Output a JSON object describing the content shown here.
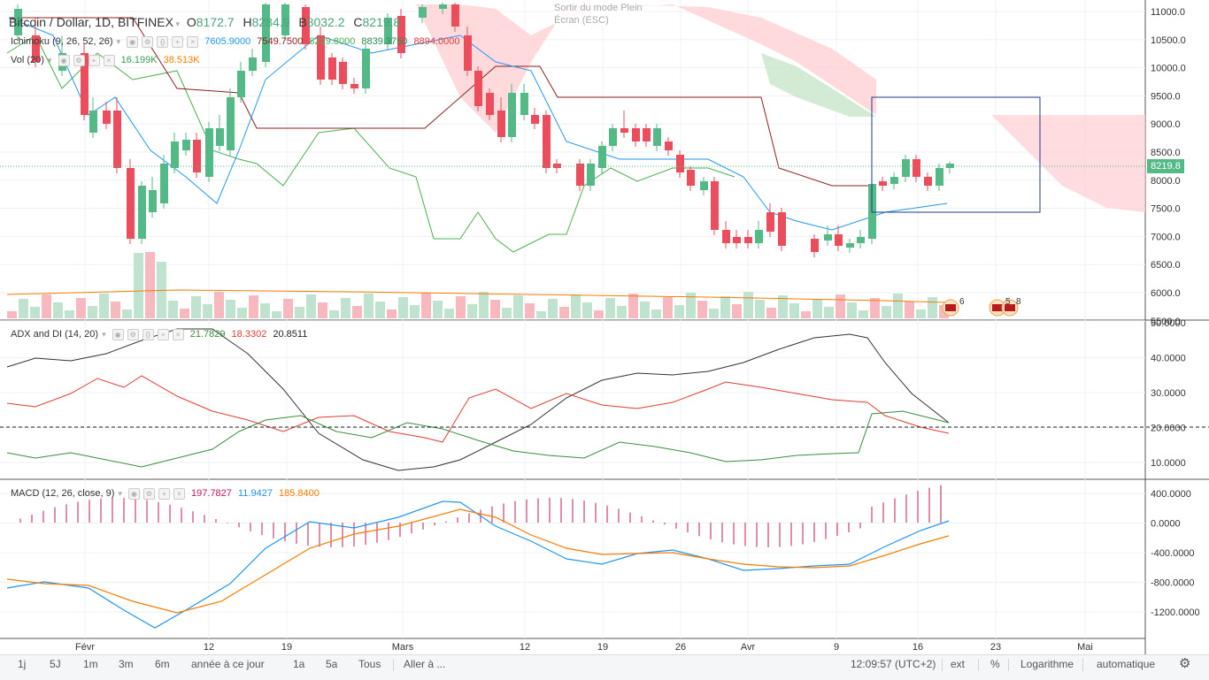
{
  "header": {
    "symbol": "Bitcoin / Dollar, 1D, BITFINEX",
    "open_label": "O",
    "open": "8172.7",
    "high_label": "H",
    "high": "8284.9",
    "low_label": "B",
    "low": "8032.2",
    "close_label": "C",
    "close": "8219.8"
  },
  "overlay_tooltip": {
    "line1": "Sortir du mode Plein",
    "line2": "Écran (ESC)"
  },
  "indicators": {
    "ichimoku": {
      "name": "Ichimoku (9, 26, 52, 26)",
      "values": [
        "7605.9000",
        "7549.7500",
        "8219.8000",
        "8839.3750",
        "8894.0000"
      ],
      "colors": [
        "#2196f3",
        "#8b1f1f",
        "#4caf50",
        "#2e8b57",
        "#e53935"
      ]
    },
    "volume": {
      "name": "Vol (20)",
      "values": [
        "16.199K",
        "38.513K"
      ],
      "colors": [
        "#3a9a5a",
        "#f57c00"
      ]
    },
    "adx": {
      "name": "ADX and DI (14, 20)",
      "values": [
        "21.7829",
        "18.3302",
        "20.8511"
      ],
      "colors": [
        "#388e3c",
        "#e53935",
        "#222222"
      ]
    },
    "macd": {
      "name": "MACD (12, 26, close, 9)",
      "values": [
        "197.7827",
        "11.9427",
        "185.8400"
      ],
      "colors": [
        "#c2185b",
        "#2196f3",
        "#f57c00"
      ]
    }
  },
  "price_axis": [
    "11000.0",
    "10500.0",
    "10000.0",
    "9500.0",
    "9000.0",
    "8500.0",
    "8000.0",
    "7500.0",
    "7000.0",
    "6500.0",
    "6000.0",
    "5500.0"
  ],
  "current_price": "8219.8",
  "adx_axis": [
    "50.0000",
    "40.0000",
    "30.0000",
    "20.0000",
    "10.0000"
  ],
  "macd_axis": [
    "400.0000",
    "0.0000",
    "-400.0000",
    "-800.0000",
    "-1200.0000"
  ],
  "time_axis": [
    "Févr",
    "12",
    "19",
    "Mars",
    "12",
    "19",
    "26",
    "Avr",
    "9",
    "16",
    "23",
    "Mai"
  ],
  "event_markers": [
    "6",
    "5",
    "8"
  ],
  "bottom_bar": {
    "ranges": [
      "1j",
      "5J",
      "1m",
      "3m",
      "6m",
      "année à ce jour",
      "1a",
      "5a",
      "Tous",
      "Aller à ..."
    ],
    "clock": "12:09:57 (UTC+2)",
    "options": [
      "ext",
      "%",
      "Logarithme",
      "automatique"
    ],
    "settings_icon": "gear-icon"
  },
  "colors": {
    "up": "#53b987",
    "down": "#eb4d5c",
    "cloud_bull": "#c8e6c9",
    "cloud_bear": "#ffcdd2",
    "grid": "#eef0f3",
    "axis_text": "#333333"
  }
}
